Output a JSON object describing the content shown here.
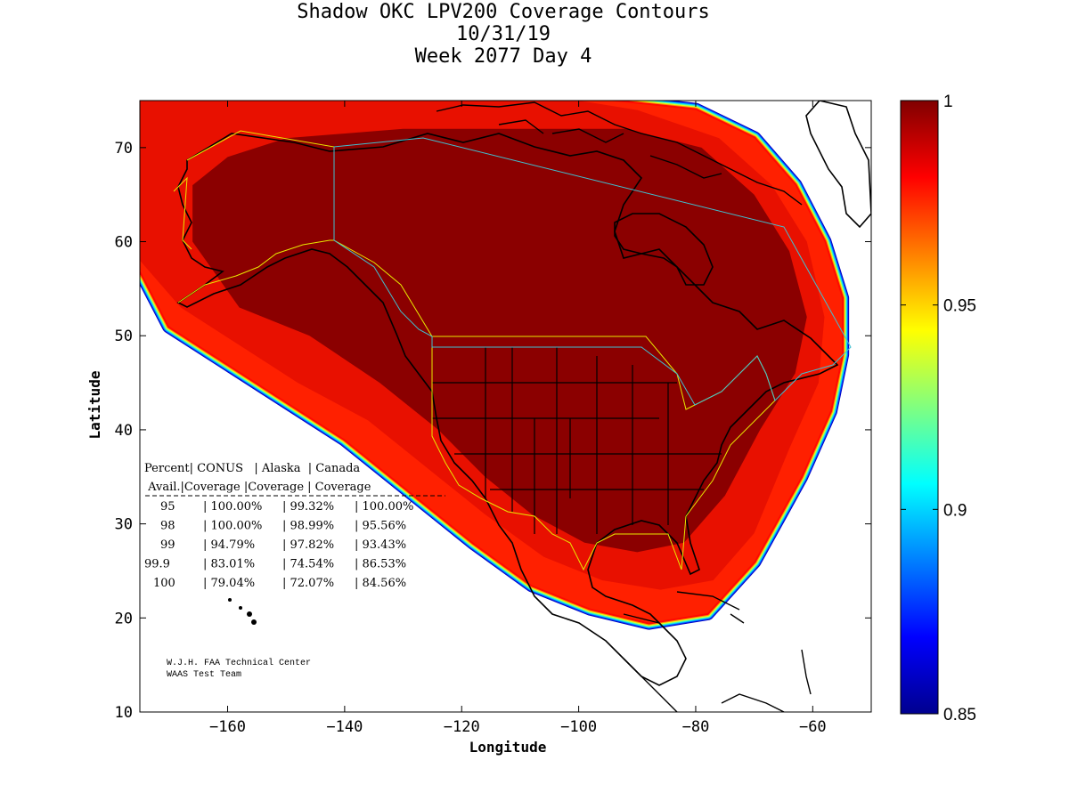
{
  "colors": {
    "background": "#ffffff",
    "frame": "#000000",
    "coastline": "#000000",
    "faa_boundary_yellow": "#e8e800",
    "faa_boundary_cyan": "#40c0d0"
  },
  "chart_data": {
    "type": "heatmap",
    "title_lines": [
      "Shadow OKC LPV200 Coverage Contours",
      "10/31/19",
      "Week 2077 Day 4"
    ],
    "xlabel": "Longitude",
    "ylabel": "Latitude",
    "xlim": [
      -175,
      -50
    ],
    "ylim": [
      10,
      75
    ],
    "xticks": [
      -160,
      -140,
      -120,
      -100,
      -80,
      -60
    ],
    "yticks": [
      10,
      20,
      30,
      40,
      50,
      60,
      70
    ],
    "colorbar": {
      "colormap": "jet",
      "range": [
        0.85,
        1
      ],
      "ticks": [
        0.85,
        0.9,
        0.95,
        1
      ],
      "tick_labels": [
        "0.85",
        "0.9",
        "0.95",
        "1"
      ]
    },
    "coverage_bands": [
      {
        "level": 1.0,
        "outline": [
          [
            -175,
            57
          ],
          [
            -170,
            51
          ],
          [
            -160,
            47
          ],
          [
            -150,
            43
          ],
          [
            -140,
            39
          ],
          [
            -128,
            33
          ],
          [
            -118,
            28
          ],
          [
            -108,
            23.5
          ],
          [
            -98,
            21
          ],
          [
            -88,
            19.5
          ],
          [
            -78,
            20.5
          ],
          [
            -70,
            26
          ],
          [
            -62,
            35
          ],
          [
            -57,
            42
          ],
          [
            -55,
            48
          ],
          [
            -55,
            54
          ],
          [
            -58,
            60
          ],
          [
            -63,
            66
          ],
          [
            -70,
            71
          ],
          [
            -80,
            74
          ],
          [
            -95,
            75
          ],
          [
            -175,
            75
          ]
        ]
      },
      {
        "level": 0.99,
        "outline": [
          [
            -175,
            58
          ],
          [
            -168,
            53
          ],
          [
            -158,
            49
          ],
          [
            -148,
            45
          ],
          [
            -136,
            41
          ],
          [
            -126,
            36
          ],
          [
            -116,
            31
          ],
          [
            -106,
            26.5
          ],
          [
            -96,
            24
          ],
          [
            -86,
            23
          ],
          [
            -77,
            24
          ],
          [
            -70,
            29
          ],
          [
            -64,
            38
          ],
          [
            -59,
            45
          ],
          [
            -58,
            52
          ],
          [
            -61,
            60
          ],
          [
            -67,
            66
          ],
          [
            -76,
            71
          ],
          [
            -90,
            74
          ],
          [
            -100,
            75
          ],
          [
            -175,
            75
          ]
        ]
      },
      {
        "level": 0.999,
        "outline": [
          [
            -166,
            66
          ],
          [
            -166,
            60
          ],
          [
            -158,
            53
          ],
          [
            -146,
            50
          ],
          [
            -134,
            45
          ],
          [
            -124,
            40
          ],
          [
            -116,
            35
          ],
          [
            -108,
            31
          ],
          [
            -99,
            28
          ],
          [
            -90,
            27
          ],
          [
            -82,
            28
          ],
          [
            -75,
            33
          ],
          [
            -69,
            40
          ],
          [
            -63,
            46
          ],
          [
            -61,
            52
          ],
          [
            -64,
            59
          ],
          [
            -70,
            65
          ],
          [
            -79,
            70
          ],
          [
            -92,
            72
          ],
          [
            -110,
            72
          ],
          [
            -130,
            72
          ],
          [
            -150,
            71
          ],
          [
            -160,
            69
          ]
        ]
      }
    ],
    "availability_table": {
      "header_row1": "Percent| CONUS   | Alaska  | Canada",
      "header_row2": " Avail.|Coverage |Coverage | Coverage",
      "rows": [
        {
          "percent": "95",
          "conus": "100.00%",
          "alaska": "99.32%",
          "canada": "100.00%"
        },
        {
          "percent": "98",
          "conus": "100.00%",
          "alaska": "98.99%",
          "canada": "95.56%"
        },
        {
          "percent": "99",
          "conus": "94.79%",
          "alaska": "97.82%",
          "canada": "93.43%"
        },
        {
          "percent": "99.9",
          "conus": "83.01%",
          "alaska": "74.54%",
          "canada": "86.53%"
        },
        {
          "percent": "100",
          "conus": "79.04%",
          "alaska": "72.07%",
          "canada": "84.56%"
        }
      ]
    },
    "credit_lines": [
      "W.J.H. FAA Technical Center",
      "WAAS Test Team"
    ]
  }
}
